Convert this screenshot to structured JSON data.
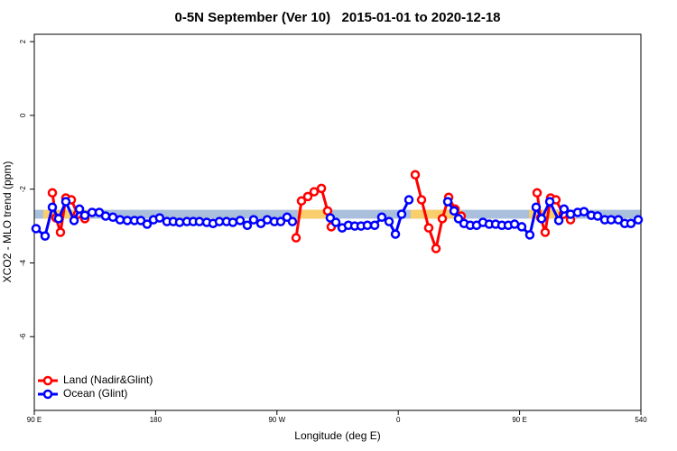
{
  "chart_data": {
    "type": "line",
    "title": "0-5N September (Ver 10)   2015-01-01 to 2020-12-18",
    "xlabel": "Longitude (deg E)",
    "ylabel": "XCO2 - MLO trend (ppm)",
    "xlim": [
      90,
      540
    ],
    "ylim": [
      -8,
      2.2
    ],
    "xticks": [
      {
        "value": 90,
        "label": "90 E"
      },
      180,
      {
        "value": 270,
        "label": "90 W"
      },
      {
        "value": 360,
        "label": "0"
      },
      {
        "value": 450,
        "label": "90 E"
      },
      540
    ],
    "yticks": [
      2,
      0,
      -2,
      -4,
      -6
    ],
    "legend": "bottomleft",
    "band": {
      "ylim": [
        -2.8,
        -2.56
      ],
      "color": "#a9bfdc",
      "segments": [
        {
          "x": [
            96.7,
            131.5
          ],
          "color": "#f9cf6d"
        },
        {
          "x": [
            285.5,
            311
          ],
          "color": "#f9cf6d"
        },
        {
          "x": [
            369.2,
            407.4
          ],
          "color": "#f9cf6d"
        },
        {
          "x": [
            457,
            490.5
          ],
          "color": "#f9cf6d"
        }
      ]
    },
    "series": [
      {
        "name": "Land (Nadir&Glint)",
        "color": "#ff0000",
        "x": [
          103.4,
          106.1,
          109.4,
          113.4,
          117.5,
          122.1,
          127.5,
          null,
          284.2,
          288.2,
          292.9,
          297.6,
          303,
          307.6,
          310.3,
          null,
          372.6,
          377.3,
          382.6,
          388,
          392.7,
          397.4,
          402.1,
          406.7,
          null,
          463,
          465.7,
          469,
          473,
          477,
          482.4,
          487.8
        ],
        "values": [
          -2.1,
          -2.78,
          -3.17,
          -2.24,
          -2.29,
          -2.68,
          -2.8,
          null,
          -3.32,
          -2.32,
          -2.2,
          -2.07,
          -1.98,
          -2.59,
          -3.02,
          null,
          -1.61,
          -2.29,
          -3.05,
          -3.61,
          -2.8,
          -2.22,
          -2.54,
          -2.73,
          null,
          -2.1,
          -2.78,
          -3.17,
          -2.24,
          -2.29,
          -2.68,
          -2.83
        ]
      },
      {
        "name": "Ocean (Glint)",
        "color": "#0000ff",
        "x": [
          91.3,
          98,
          103.4,
          108,
          113.4,
          119.5,
          123.5,
          127.5,
          132.9,
          138.2,
          142.9,
          148.3,
          153.6,
          159,
          164.3,
          169,
          173.7,
          178.4,
          183,
          188.4,
          193.1,
          197.8,
          203.2,
          207.9,
          212.5,
          217.9,
          222.6,
          227.3,
          232.6,
          237.3,
          242.7,
          248,
          252.7,
          258.1,
          262.8,
          268.1,
          272.8,
          277.5,
          281.5,
          null,
          309.6,
          313.7,
          318.4,
          323,
          327.7,
          332.4,
          337.1,
          342.5,
          347.8,
          353.2,
          357.9,
          362.5,
          367.9,
          null,
          396.7,
          401.4,
          404.7,
          408.8,
          413.4,
          418.1,
          422.8,
          427.5,
          432.2,
          436.9,
          441.6,
          446.3,
          451.6,
          457.6,
          462.3,
          466.3,
          472.4,
          479.1,
          483,
          487.8,
          493.1,
          497.8,
          503.2,
          507.9,
          513.2,
          517.9,
          523.3,
          528,
          532.6,
          538
        ],
        "values": [
          -3.07,
          -3.27,
          -2.49,
          -2.8,
          -2.34,
          -2.85,
          -2.54,
          -2.71,
          -2.63,
          -2.63,
          -2.73,
          -2.76,
          -2.83,
          -2.85,
          -2.85,
          -2.85,
          -2.95,
          -2.83,
          -2.78,
          -2.88,
          -2.88,
          -2.9,
          -2.88,
          -2.88,
          -2.88,
          -2.9,
          -2.93,
          -2.88,
          -2.88,
          -2.9,
          -2.85,
          -2.98,
          -2.83,
          -2.93,
          -2.83,
          -2.88,
          -2.88,
          -2.76,
          -2.88,
          null,
          -2.78,
          -2.9,
          -3.05,
          -2.98,
          -3.0,
          -3.0,
          -2.98,
          -2.98,
          -2.76,
          -2.88,
          -3.22,
          -2.68,
          -2.29,
          null,
          -2.34,
          -2.59,
          -2.8,
          -2.93,
          -2.98,
          -2.98,
          -2.9,
          -2.95,
          -2.95,
          -2.98,
          -2.98,
          -2.95,
          -3.02,
          -3.24,
          -2.49,
          -2.8,
          -2.34,
          -2.85,
          -2.54,
          -2.68,
          -2.63,
          -2.61,
          -2.71,
          -2.73,
          -2.83,
          -2.83,
          -2.83,
          -2.93,
          -2.93,
          -2.83
        ]
      }
    ]
  }
}
